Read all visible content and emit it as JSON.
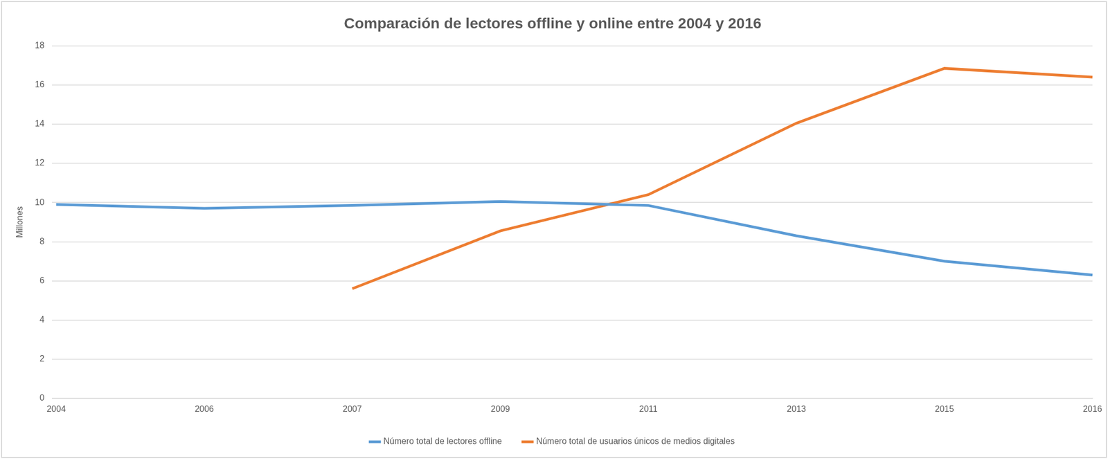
{
  "chart_data": {
    "type": "line",
    "title": "Comparación de lectores offline y online entre 2004 y 2016",
    "y_label": "Millones",
    "categories": [
      "2004",
      "2006",
      "2007",
      "2009",
      "2011",
      "2013",
      "2015",
      "2016"
    ],
    "series": [
      {
        "name": "Número total de lectores offline",
        "color": "#5b9bd5",
        "values": [
          9.9,
          9.7,
          9.85,
          10.05,
          9.85,
          8.3,
          7.0,
          6.3
        ]
      },
      {
        "name": "Número total de usuarios únicos de medios digitales",
        "color": "#ed7d31",
        "values": [
          null,
          null,
          5.6,
          8.55,
          10.4,
          14.05,
          16.85,
          16.4
        ]
      }
    ],
    "ylim": [
      0,
      18
    ],
    "yticks": [
      0,
      2,
      4,
      6,
      8,
      10,
      12,
      14,
      16,
      18
    ],
    "grid": true,
    "legend": "bottom"
  }
}
